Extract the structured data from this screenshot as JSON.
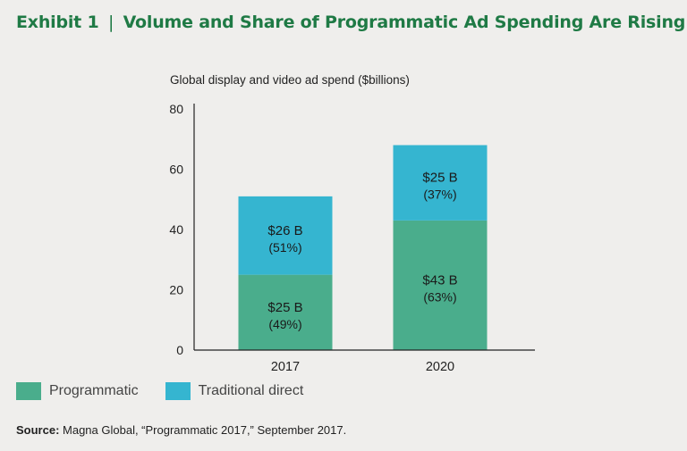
{
  "header": {
    "exhibit": "Exhibit 1",
    "separator": "|",
    "title": "Volume and Share of Programmatic Ad Spending Are Rising"
  },
  "chart_data": {
    "type": "bar",
    "stacked": true,
    "subtitle": "Global display and video ad spend ($billions)",
    "categories": [
      "2017",
      "2020"
    ],
    "series": [
      {
        "name": "Programmatic",
        "color": "#4aad8c",
        "values": [
          25,
          43
        ],
        "labels": [
          "$25 B",
          "$43 B"
        ],
        "shares": [
          "(49%)",
          "(63%)"
        ]
      },
      {
        "name": "Traditional direct",
        "color": "#35b5d0",
        "values": [
          26,
          25
        ],
        "labels": [
          "$26 B",
          "$25 B"
        ],
        "shares": [
          "(51%)",
          "(37%)"
        ]
      }
    ],
    "ylim": [
      0,
      80
    ],
    "yticks": [
      0,
      20,
      40,
      60,
      80
    ],
    "grid": false,
    "legend_position": "bottom-left"
  },
  "source": {
    "label": "Source:",
    "text": " Magna Global, “Programmatic 2017,” September 2017."
  }
}
